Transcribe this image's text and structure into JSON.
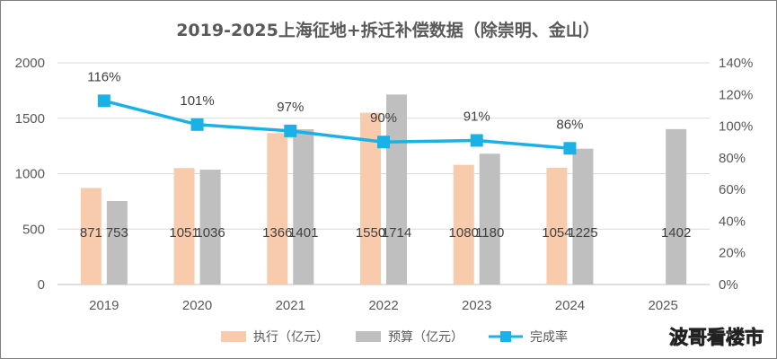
{
  "chart_data": {
    "type": "bar",
    "title": "2019-2025上海征地+拆迁补偿数据（除崇明、金山）",
    "categories": [
      "2019",
      "2020",
      "2021",
      "2022",
      "2023",
      "2024",
      "2025"
    ],
    "series": [
      {
        "name": "执行（亿元）",
        "color": "#f8cbad",
        "values": [
          871,
          1051,
          1366,
          1550,
          1080,
          1054,
          null
        ],
        "labels": [
          "871",
          "1051",
          "1366",
          "1550",
          "1080",
          "1054",
          ""
        ]
      },
      {
        "name": "预算（亿元）",
        "color": "#bfbfbf",
        "values": [
          753,
          1036,
          1401,
          1714,
          1180,
          1225,
          1402
        ],
        "labels": [
          "753",
          "1036",
          "1401",
          "1714",
          "1180",
          "1225",
          "1402"
        ]
      }
    ],
    "line_series": {
      "name": "完成率",
      "color": "#1ab1e6",
      "axis": "secondary",
      "values": [
        116,
        101,
        97,
        90,
        91,
        86
      ],
      "labels": [
        "116%",
        "101%",
        "97%",
        "90%",
        "91%",
        "86%"
      ]
    },
    "y_left": {
      "min": 0,
      "max": 2000,
      "ticks": [
        "0",
        "500",
        "1000",
        "1500",
        "2000"
      ]
    },
    "y_right": {
      "min": 0,
      "max": 140,
      "ticks": [
        "0%",
        "20%",
        "40%",
        "60%",
        "80%",
        "100%",
        "120%",
        "140%"
      ]
    },
    "grid": true,
    "legend": "bottom"
  },
  "watermark": "波哥看楼市"
}
